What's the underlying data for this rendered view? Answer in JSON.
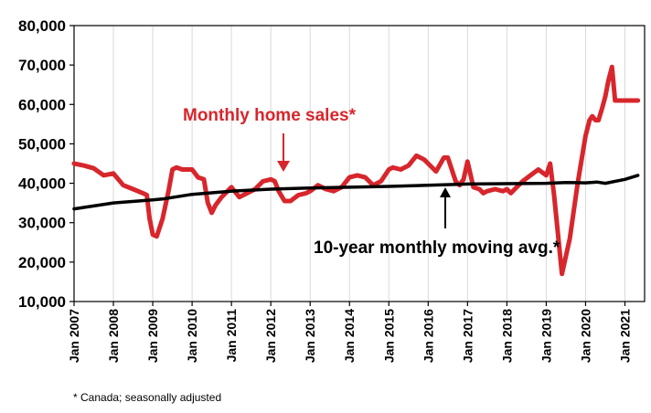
{
  "chart_data": {
    "type": "line",
    "title": "",
    "xlabel": "",
    "ylabel": "",
    "ylim": [
      10000,
      80000
    ],
    "yticks": [
      10000,
      20000,
      30000,
      40000,
      50000,
      60000,
      70000,
      80000
    ],
    "ytick_labels": [
      "10,000",
      "20,000",
      "30,000",
      "40,000",
      "50,000",
      "60,000",
      "70,000",
      "80,000"
    ],
    "xlim": [
      2007.0,
      2021.5
    ],
    "xticks": [
      2007,
      2008,
      2009,
      2010,
      2011,
      2012,
      2013,
      2014,
      2015,
      2016,
      2017,
      2018,
      2019,
      2020,
      2021
    ],
    "xtick_labels": [
      "Jan 2007",
      "Jan 2008",
      "Jan 2009",
      "Jan 2010",
      "Jan 2011",
      "Jan 2012",
      "Jan 2013",
      "Jan 2014",
      "Jan 2015",
      "Jan 2016",
      "Jan 2017",
      "Jan 2018",
      "Jan 2019",
      "Jan 2020",
      "Jan 2021"
    ],
    "grid": "vertical",
    "series": [
      {
        "name": "Monthly home sales*",
        "color": "#d7262c",
        "x": [
          2007.0,
          2007.25,
          2007.5,
          2007.75,
          2008.0,
          2008.25,
          2008.5,
          2008.75,
          2008.85,
          2008.92,
          2009.0,
          2009.1,
          2009.25,
          2009.4,
          2009.5,
          2009.6,
          2009.75,
          2010.0,
          2010.15,
          2010.3,
          2010.4,
          2010.5,
          2010.6,
          2010.75,
          2011.0,
          2011.2,
          2011.4,
          2011.6,
          2011.8,
          2012.0,
          2012.1,
          2012.2,
          2012.35,
          2012.5,
          2012.7,
          2012.9,
          2013.0,
          2013.2,
          2013.4,
          2013.6,
          2013.8,
          2014.0,
          2014.2,
          2014.4,
          2014.6,
          2014.8,
          2015.0,
          2015.1,
          2015.3,
          2015.5,
          2015.7,
          2015.9,
          2016.0,
          2016.2,
          2016.4,
          2016.5,
          2016.7,
          2016.8,
          2016.9,
          2017.0,
          2017.15,
          2017.3,
          2017.4,
          2017.5,
          2017.7,
          2017.9,
          2018.0,
          2018.1,
          2018.2,
          2018.4,
          2018.6,
          2018.8,
          2019.0,
          2019.1,
          2019.2,
          2019.4,
          2019.6,
          2019.8,
          2020.0,
          2020.1,
          2020.17,
          2020.25,
          2020.33,
          2020.42,
          2020.5,
          2020.58,
          2020.67,
          2020.75,
          2020.85,
          2020.92,
          2021.0,
          2021.08,
          2021.17,
          2021.25,
          2021.33
        ],
        "values": [
          45000,
          44500,
          43800,
          42000,
          42500,
          39500,
          38500,
          37500,
          37000,
          31000,
          27000,
          26500,
          31000,
          38000,
          43500,
          44000,
          43500,
          43500,
          41500,
          41000,
          35000,
          32500,
          34500,
          36500,
          39000,
          36500,
          37500,
          38500,
          40500,
          41000,
          40500,
          38000,
          35500,
          35500,
          37000,
          37500,
          38000,
          39500,
          38500,
          38000,
          39000,
          41500,
          42000,
          41500,
          39500,
          40500,
          43500,
          44000,
          43500,
          44500,
          47000,
          46000,
          45000,
          43000,
          46500,
          46500,
          40500,
          39500,
          41000,
          45500,
          39000,
          38500,
          37500,
          38000,
          38500,
          38000,
          38500,
          37500,
          38500,
          40500,
          42000,
          43500,
          42000,
          45000,
          37000,
          17000,
          26000,
          40000,
          52000,
          56000,
          57000,
          56000,
          56000,
          59000,
          62000,
          66000,
          69500,
          61000,
          61000,
          61000,
          61000,
          61000,
          61000,
          61000,
          61000
        ],
        "annotation": "Monthly home sales*"
      },
      {
        "name": "10-year monthly moving avg.*",
        "color": "#000000",
        "x": [
          2007.0,
          2008.0,
          2009.0,
          2009.25,
          2010.0,
          2011.0,
          2012.0,
          2013.0,
          2014.0,
          2015.0,
          2016.0,
          2017.0,
          2018.0,
          2019.0,
          2019.5,
          2020.0,
          2020.3,
          2020.5,
          2021.0,
          2021.33
        ],
        "values": [
          33500,
          35000,
          35800,
          36000,
          37200,
          38000,
          38500,
          38800,
          39000,
          39200,
          39500,
          39800,
          39900,
          40000,
          40200,
          40100,
          40300,
          40000,
          41000,
          42000
        ],
        "annotation": "10-year monthly moving avg.*"
      }
    ],
    "footnote": "* Canada; seasonally adjusted"
  }
}
